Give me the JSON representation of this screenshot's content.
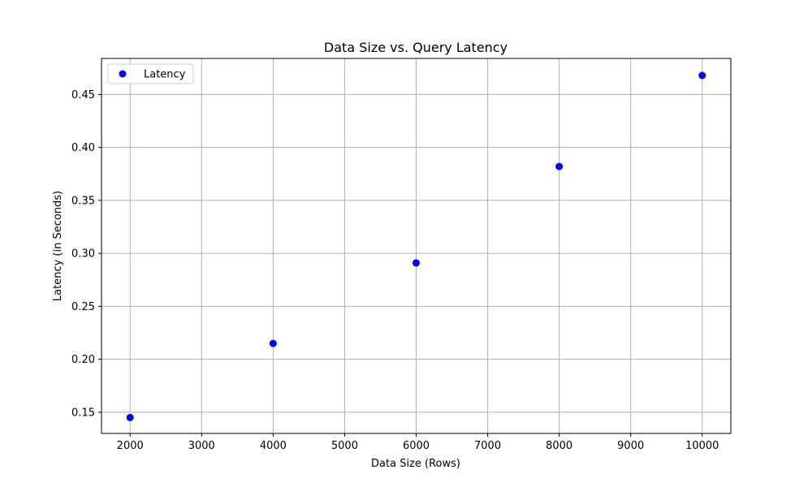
{
  "chart_data": {
    "type": "scatter",
    "title": "Data Size vs. Query Latency",
    "xlabel": "Data Size (Rows)",
    "ylabel": "Latency (in Seconds)",
    "xlim": [
      1600,
      10400
    ],
    "ylim": [
      0.13,
      0.484
    ],
    "xticks": [
      2000,
      3000,
      4000,
      5000,
      6000,
      7000,
      8000,
      9000,
      10000
    ],
    "yticks": [
      0.15,
      0.2,
      0.25,
      0.3,
      0.35,
      0.4,
      0.45
    ],
    "xtick_labels": [
      "2000",
      "3000",
      "4000",
      "5000",
      "6000",
      "7000",
      "8000",
      "9000",
      "10000"
    ],
    "ytick_labels": [
      "0.15",
      "0.20",
      "0.25",
      "0.30",
      "0.35",
      "0.40",
      "0.45"
    ],
    "grid": true,
    "legend_position": "upper-left",
    "series": [
      {
        "name": "Latency",
        "color": "#0000ff",
        "x": [
          2000,
          4000,
          6000,
          8000,
          10000
        ],
        "y": [
          0.145,
          0.215,
          0.291,
          0.382,
          0.468
        ]
      }
    ]
  },
  "colors": {
    "grid": "#b0b0b0",
    "axes": "#000000",
    "legend_border": "#cccccc"
  }
}
